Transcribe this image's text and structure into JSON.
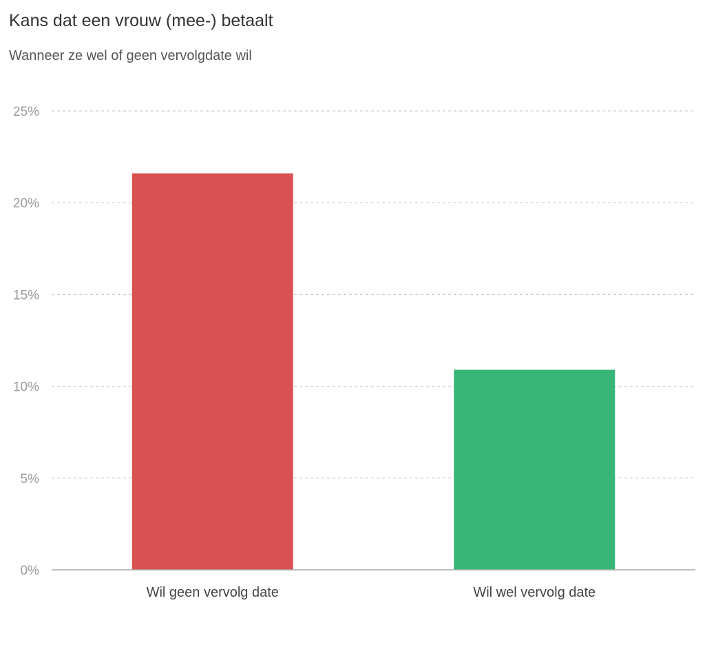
{
  "chart_data": {
    "type": "bar",
    "title": "Kans dat een vrouw (mee-) betaalt",
    "subtitle": "Wanneer ze wel of geen vervolgdate wil",
    "categories": [
      "Wil geen vervolg date",
      "Wil wel vervolg date"
    ],
    "values": [
      21.6,
      10.9
    ],
    "colors": [
      "#d95152",
      "#38b677"
    ],
    "ylim": [
      0,
      25
    ],
    "yticks": [
      0,
      5,
      10,
      15,
      20,
      25
    ],
    "ytick_labels": [
      "0%",
      "5%",
      "10%",
      "15%",
      "20%",
      "25%"
    ],
    "grid": true,
    "grid_style": "dashed",
    "legend": false
  }
}
